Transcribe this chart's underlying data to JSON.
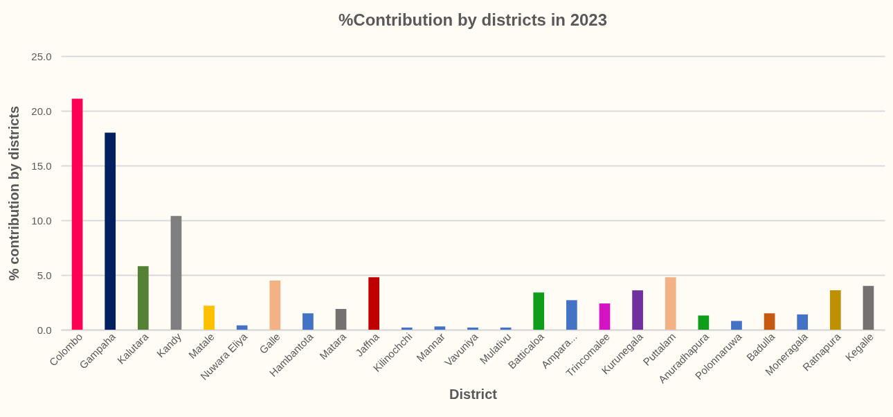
{
  "chart_data": {
    "type": "bar",
    "title": "%Contribution by districts in 2023",
    "xlabel": "District",
    "ylabel": "% contribution by districts",
    "categories": [
      "Colombo",
      "Gampaha",
      "Kalutara",
      "Kandy",
      "Matale",
      "Nuwara Eliya",
      "Galle",
      "Hambantota",
      "Matara",
      "Jaffna",
      "Kilinochchi",
      "Mannar",
      "Vavuniya",
      "Mulativu",
      "Batticaloa",
      "Ampara...",
      "Trincomalee",
      "Kurunegala",
      "Puttalam",
      "Anuradhapura",
      "Polonnaruwa",
      "Badulla",
      "Moneragala",
      "Ratnapura",
      "Kegalle"
    ],
    "values": [
      21.1,
      18.0,
      5.8,
      10.4,
      2.2,
      0.4,
      4.5,
      1.5,
      1.9,
      4.8,
      0.2,
      0.3,
      0.2,
      0.2,
      3.4,
      2.7,
      2.4,
      3.6,
      4.8,
      1.3,
      0.8,
      1.5,
      1.4,
      3.6,
      4.0
    ],
    "colors": [
      "#ff0055",
      "#002060",
      "#548235",
      "#7f7f7f",
      "#ffc000",
      "#4472c4",
      "#f4b183",
      "#4472c4",
      "#767171",
      "#c00000",
      "#4472c4",
      "#4472c4",
      "#4472c4",
      "#4472c4",
      "#0f9d1b",
      "#4472c4",
      "#d414c4",
      "#7030a0",
      "#f4b183",
      "#0f9d1b",
      "#4472c4",
      "#c55a11",
      "#4472c4",
      "#bf9000",
      "#767171"
    ],
    "ylim": [
      0,
      25
    ],
    "yticks": [
      {
        "value": 0,
        "label": "0.0"
      },
      {
        "value": 5,
        "label": "5.0"
      },
      {
        "value": 10,
        "label": "10.0"
      },
      {
        "value": 15,
        "label": "15.0"
      },
      {
        "value": 20,
        "label": "20.0"
      },
      {
        "value": 25,
        "label": "25.0"
      }
    ],
    "grid": "y"
  }
}
